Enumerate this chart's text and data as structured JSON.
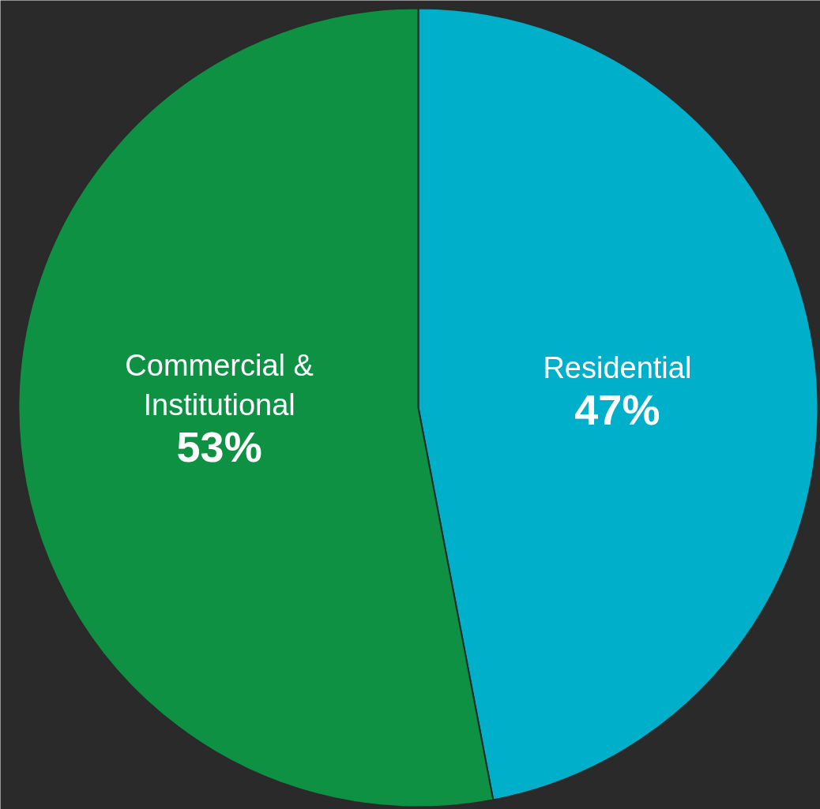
{
  "chart_data": {
    "type": "pie",
    "categories": [
      "Residential",
      "Commercial & Institutional"
    ],
    "values": [
      47,
      53
    ],
    "value_labels": [
      "47%",
      "53%"
    ],
    "colors": [
      "#00b0cb",
      "#0e9142"
    ]
  }
}
